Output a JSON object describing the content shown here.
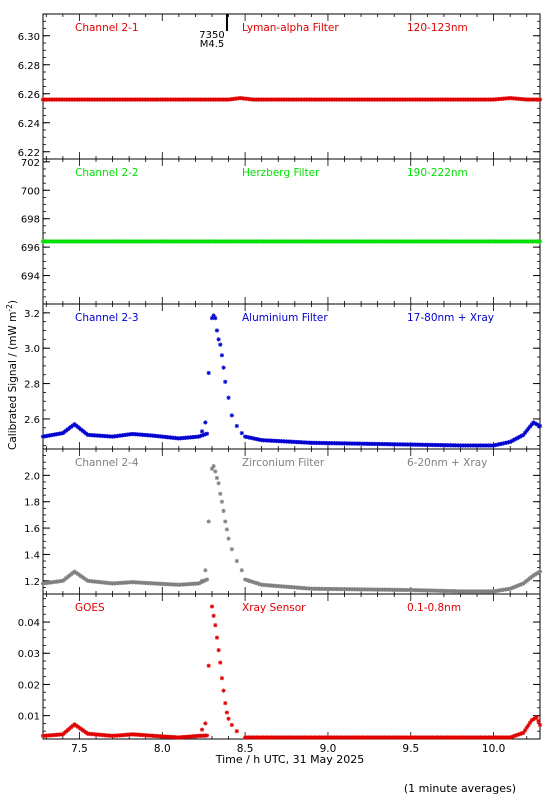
{
  "figure": {
    "ylabel": "Calibrated Signal / (mW m",
    "ylabel_sup": "-2",
    "ylabel_close": ")",
    "xlabel": "Time / h UTC, 31 May 2025",
    "footnote": "(1 minute averages)",
    "event": {
      "x": 8.3,
      "label_line1": "7350",
      "label_line2": "M4.5"
    }
  },
  "chart_data": [
    {
      "type": "scatter",
      "labels": {
        "channel": "Channel 2-1",
        "filter": "Lyman-alpha Filter",
        "band": "120-123nm"
      },
      "color": "#e00000",
      "xlim": [
        7.28,
        10.28
      ],
      "ylim": [
        6.215,
        6.315
      ],
      "yticks": [
        "6.22",
        "6.24",
        "6.26",
        "6.28",
        "6.30"
      ],
      "baseline": [
        [
          7.28,
          6.256
        ],
        [
          8.4,
          6.256
        ],
        [
          8.47,
          6.257
        ],
        [
          8.55,
          6.256
        ],
        [
          10.0,
          6.256
        ],
        [
          10.1,
          6.257
        ],
        [
          10.2,
          6.256
        ],
        [
          10.28,
          6.256
        ]
      ]
    },
    {
      "type": "scatter",
      "labels": {
        "channel": "Channel 2-2",
        "filter": "Herzberg Filter",
        "band": "190-222nm"
      },
      "color": "#00e000",
      "xlim": [
        7.28,
        10.28
      ],
      "ylim": [
        692.0,
        702.2
      ],
      "yticks": [
        "694",
        "696",
        "698",
        "700",
        "702"
      ],
      "baseline": [
        [
          7.28,
          696.4
        ],
        [
          10.28,
          696.4
        ]
      ]
    },
    {
      "type": "scatter",
      "labels": {
        "channel": "Channel 2-3",
        "filter": "Aluminium Filter",
        "band": "17-80nm + Xray"
      },
      "color": "#0000d0",
      "xlim": [
        7.28,
        10.28
      ],
      "ylim": [
        2.43,
        3.25
      ],
      "yticks": [
        "2.6",
        "2.8",
        "3.0",
        "3.2"
      ],
      "baseline": [
        [
          7.28,
          2.5
        ],
        [
          7.4,
          2.52
        ],
        [
          7.47,
          2.57
        ],
        [
          7.55,
          2.51
        ],
        [
          7.7,
          2.5
        ],
        [
          7.82,
          2.515
        ],
        [
          7.95,
          2.505
        ],
        [
          8.1,
          2.49
        ],
        [
          8.22,
          2.5
        ],
        [
          8.4,
          2.56
        ],
        [
          8.5,
          2.5
        ],
        [
          8.6,
          2.48
        ],
        [
          8.9,
          2.465
        ],
        [
          9.5,
          2.455
        ],
        [
          9.8,
          2.45
        ],
        [
          10.0,
          2.45
        ],
        [
          10.1,
          2.47
        ],
        [
          10.18,
          2.51
        ],
        [
          10.24,
          2.58
        ],
        [
          10.28,
          2.56
        ]
      ],
      "flare": [
        [
          8.28,
          2.86
        ],
        [
          8.3,
          3.17
        ],
        [
          8.31,
          3.185
        ],
        [
          8.32,
          3.17
        ],
        [
          8.33,
          3.1
        ],
        [
          8.34,
          3.05
        ],
        [
          8.35,
          3.02
        ],
        [
          8.36,
          2.96
        ],
        [
          8.37,
          2.89
        ],
        [
          8.38,
          2.81
        ],
        [
          8.4,
          2.72
        ],
        [
          8.42,
          2.62
        ],
        [
          8.45,
          2.56
        ],
        [
          8.48,
          2.52
        ]
      ],
      "precursor": [
        [
          8.24,
          2.53
        ],
        [
          8.26,
          2.58
        ]
      ]
    },
    {
      "type": "scatter",
      "labels": {
        "channel": "Channel 2-4",
        "filter": "Zirconium Filter",
        "band": "6-20nm + Xray"
      },
      "color": "#808080",
      "xlim": [
        7.28,
        10.28
      ],
      "ylim": [
        1.1,
        2.2
      ],
      "yticks": [
        "1.2",
        "1.4",
        "1.6",
        "1.8",
        "2.0"
      ],
      "baseline": [
        [
          7.28,
          1.18
        ],
        [
          7.4,
          1.2
        ],
        [
          7.47,
          1.27
        ],
        [
          7.55,
          1.2
        ],
        [
          7.7,
          1.18
        ],
        [
          7.82,
          1.19
        ],
        [
          7.95,
          1.18
        ],
        [
          8.1,
          1.17
        ],
        [
          8.22,
          1.18
        ],
        [
          8.42,
          1.3
        ],
        [
          8.5,
          1.21
        ],
        [
          8.6,
          1.17
        ],
        [
          8.9,
          1.14
        ],
        [
          9.5,
          1.13
        ],
        [
          9.8,
          1.12
        ],
        [
          10.0,
          1.12
        ],
        [
          10.1,
          1.14
        ],
        [
          10.18,
          1.18
        ],
        [
          10.24,
          1.24
        ],
        [
          10.28,
          1.27
        ]
      ],
      "flare": [
        [
          8.28,
          1.65
        ],
        [
          8.3,
          2.05
        ],
        [
          8.31,
          2.07
        ],
        [
          8.32,
          2.03
        ],
        [
          8.33,
          1.98
        ],
        [
          8.34,
          1.94
        ],
        [
          8.35,
          1.86
        ],
        [
          8.36,
          1.8
        ],
        [
          8.37,
          1.73
        ],
        [
          8.38,
          1.65
        ],
        [
          8.39,
          1.59
        ],
        [
          8.4,
          1.52
        ],
        [
          8.42,
          1.44
        ],
        [
          8.45,
          1.35
        ],
        [
          8.48,
          1.28
        ]
      ],
      "precursor": [
        [
          8.24,
          1.2
        ],
        [
          8.26,
          1.28
        ]
      ]
    },
    {
      "type": "scatter",
      "labels": {
        "channel": "GOES",
        "filter": "Xray Sensor",
        "band": "0.1-0.8nm"
      },
      "color": "#e00000",
      "xlim": [
        7.28,
        10.28
      ],
      "ylim": [
        0.0025,
        0.049
      ],
      "yticks": [
        "0.01",
        "0.02",
        "0.03",
        "0.04"
      ],
      "baseline": [
        [
          7.28,
          0.0035
        ],
        [
          7.4,
          0.004
        ],
        [
          7.47,
          0.0072
        ],
        [
          7.55,
          0.0042
        ],
        [
          7.7,
          0.0035
        ],
        [
          7.82,
          0.004
        ],
        [
          7.95,
          0.0035
        ],
        [
          8.1,
          0.003
        ],
        [
          8.22,
          0.0035
        ],
        [
          8.45,
          0.004
        ],
        [
          8.5,
          0.003
        ],
        [
          8.7,
          0.003
        ],
        [
          9.5,
          0.003
        ],
        [
          10.1,
          0.003
        ],
        [
          10.18,
          0.0045
        ],
        [
          10.23,
          0.0085
        ],
        [
          10.26,
          0.0095
        ],
        [
          10.28,
          0.007
        ]
      ],
      "flare": [
        [
          8.28,
          0.026
        ],
        [
          8.3,
          0.045
        ],
        [
          8.31,
          0.042
        ],
        [
          8.32,
          0.039
        ],
        [
          8.33,
          0.035
        ],
        [
          8.34,
          0.031
        ],
        [
          8.35,
          0.027
        ],
        [
          8.36,
          0.022
        ],
        [
          8.37,
          0.018
        ],
        [
          8.38,
          0.014
        ],
        [
          8.39,
          0.011
        ],
        [
          8.4,
          0.009
        ],
        [
          8.42,
          0.007
        ],
        [
          8.45,
          0.005
        ]
      ],
      "precursor": [
        [
          8.24,
          0.0055
        ],
        [
          8.26,
          0.0075
        ]
      ]
    }
  ],
  "x_axis": {
    "ticks": [
      "7.5",
      "8.0",
      "8.5",
      "9.0",
      "9.5",
      "10.0"
    ]
  }
}
